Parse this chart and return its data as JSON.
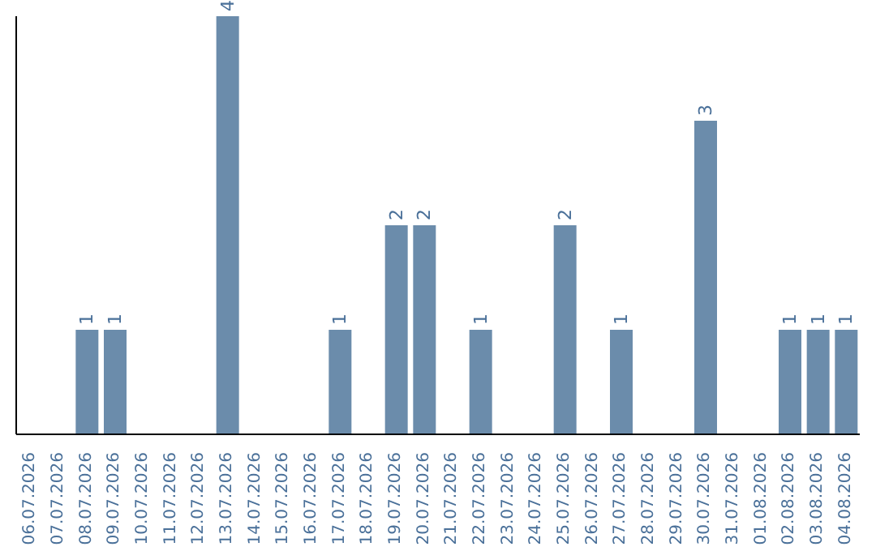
{
  "chart_data": {
    "type": "bar",
    "categories": [
      "06.07.2026",
      "07.07.2026",
      "08.07.2026",
      "09.07.2026",
      "10.07.2026",
      "11.07.2026",
      "12.07.2026",
      "13.07.2026",
      "14.07.2026",
      "15.07.2026",
      "16.07.2026",
      "17.07.2026",
      "18.07.2026",
      "19.07.2026",
      "20.07.2026",
      "21.07.2026",
      "22.07.2026",
      "23.07.2026",
      "24.07.2026",
      "25.07.2026",
      "26.07.2026",
      "27.07.2026",
      "28.07.2026",
      "29.07.2026",
      "30.07.2026",
      "31.07.2026",
      "01.08.2026",
      "02.08.2026",
      "03.08.2026",
      "04.08.2026"
    ],
    "values": [
      0,
      0,
      1,
      1,
      0,
      0,
      0,
      4,
      0,
      0,
      0,
      1,
      0,
      2,
      2,
      0,
      1,
      0,
      0,
      2,
      0,
      1,
      0,
      0,
      3,
      0,
      0,
      1,
      1,
      1
    ],
    "value_labels": [
      null,
      null,
      "1",
      "1",
      null,
      null,
      null,
      "4",
      null,
      null,
      null,
      "1",
      null,
      "2",
      "2",
      null,
      "1",
      null,
      null,
      "2",
      null,
      "1",
      null,
      null,
      "3",
      null,
      null,
      "1",
      "1",
      "1"
    ],
    "color": "#6b8cab",
    "grid": false,
    "legend": false
  }
}
